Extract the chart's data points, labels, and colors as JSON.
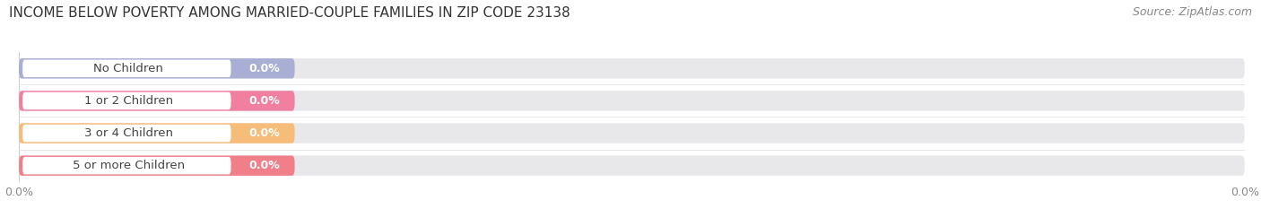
{
  "title": "INCOME BELOW POVERTY AMONG MARRIED-COUPLE FAMILIES IN ZIP CODE 23138",
  "source": "Source: ZipAtlas.com",
  "categories": [
    "No Children",
    "1 or 2 Children",
    "3 or 4 Children",
    "5 or more Children"
  ],
  "values": [
    0.0,
    0.0,
    0.0,
    0.0
  ],
  "bar_colors": [
    "#a8aed4",
    "#f07fa0",
    "#f5bc7a",
    "#f07f8a"
  ],
  "bar_bg_color": "#e8e8ea",
  "white_pill_color": "#ffffff",
  "background_color": "#ffffff",
  "title_fontsize": 11,
  "source_fontsize": 9,
  "label_fontsize": 9.5,
  "value_fontsize": 9,
  "tick_fontsize": 9,
  "tick_color": "#888888",
  "label_color": "#444444",
  "title_color": "#333333"
}
